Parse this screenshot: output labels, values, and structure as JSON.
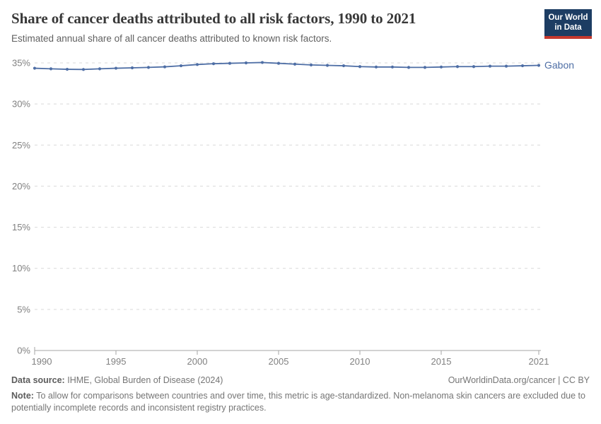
{
  "header": {
    "title": "Share of cancer deaths attributed to all risk factors, 1990 to 2021",
    "subtitle": "Estimated annual share of all cancer deaths attributed to known risk factors."
  },
  "logo": {
    "line1": "Our World",
    "line2": "in Data",
    "bg_color": "#1d3d63",
    "bar_color": "#c5392e"
  },
  "chart_data": {
    "type": "line",
    "title": "Share of cancer deaths attributed to all risk factors, 1990 to 2021",
    "subtitle": "Estimated annual share of all cancer deaths attributed to known risk factors.",
    "x": [
      1990,
      1991,
      1992,
      1993,
      1994,
      1995,
      1996,
      1997,
      1998,
      1999,
      2000,
      2001,
      2002,
      2003,
      2004,
      2005,
      2006,
      2007,
      2008,
      2009,
      2010,
      2011,
      2012,
      2013,
      2014,
      2015,
      2016,
      2017,
      2018,
      2019,
      2020,
      2021
    ],
    "series": [
      {
        "name": "Gabon",
        "color": "#4e6ea5",
        "values": [
          34.35,
          34.28,
          34.22,
          34.2,
          34.28,
          34.35,
          34.4,
          34.45,
          34.52,
          34.65,
          34.8,
          34.9,
          34.95,
          35.0,
          35.05,
          34.95,
          34.85,
          34.75,
          34.7,
          34.65,
          34.55,
          34.5,
          34.5,
          34.45,
          34.45,
          34.5,
          34.55,
          34.55,
          34.6,
          34.6,
          34.65,
          34.7
        ]
      }
    ],
    "xlabel": "",
    "ylabel": "",
    "ylim": [
      0,
      35
    ],
    "yticks": [
      0,
      5,
      10,
      15,
      20,
      25,
      30,
      35
    ],
    "ytick_suffix": "%",
    "xticks": [
      1990,
      1995,
      2000,
      2005,
      2010,
      2015,
      2021
    ],
    "grid": true,
    "grid_style": "dashed",
    "grid_color": "#d9d9d9",
    "axis_color": "#a5a5a5",
    "tick_label_color": "#818181",
    "legend_position": "end-of-line",
    "end_label": "Gabon"
  },
  "footer": {
    "source_label": "Data source:",
    "source_text": "IHME, Global Burden of Disease (2024)",
    "link_text": "OurWorldinData.org/cancer | CC BY",
    "note_label": "Note:",
    "note_text": "To allow for comparisons between countries and over time, this metric is age-standardized. Non-melanoma skin cancers are excluded due to potentially incomplete records and inconsistent registry practices."
  }
}
